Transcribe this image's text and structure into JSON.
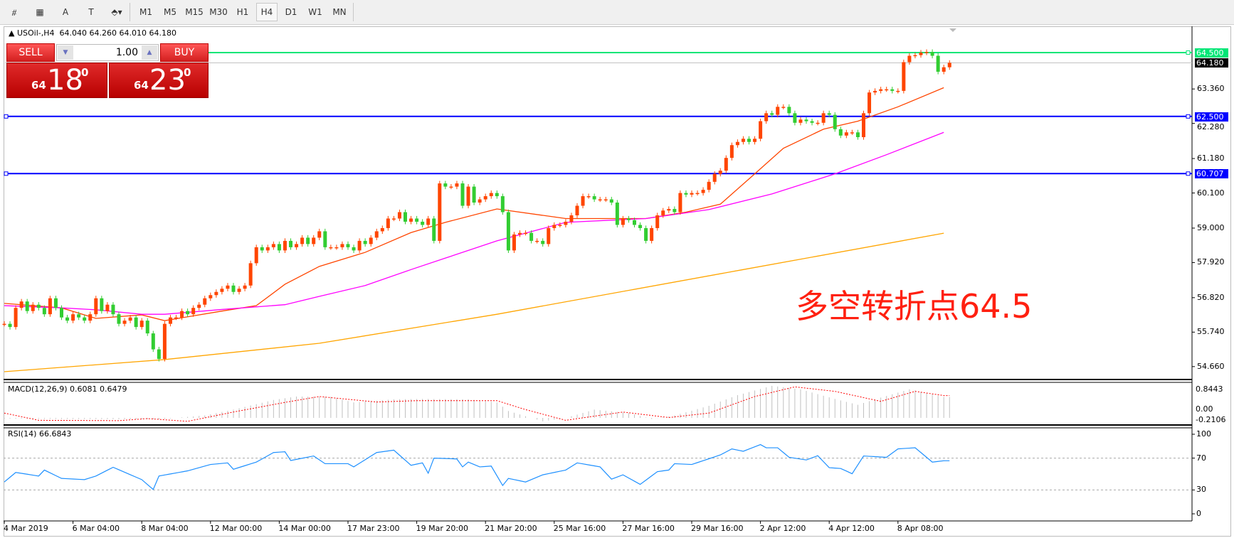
{
  "toolbar": {
    "tools": [
      {
        "name": "fibonacci-expansion-icon",
        "glyph": "⧣"
      },
      {
        "name": "fibonacci-fan-icon",
        "glyph": "▦"
      },
      {
        "name": "text-icon",
        "glyph": "A"
      },
      {
        "name": "text-label-icon",
        "glyph": "T"
      },
      {
        "name": "arrows-icon",
        "glyph": "⬘▾"
      }
    ],
    "timeframes": [
      "M1",
      "M5",
      "M15",
      "M30",
      "H1",
      "H4",
      "D1",
      "W1",
      "MN"
    ],
    "active_timeframe": "H4"
  },
  "header": {
    "symbol": "USOil-,H4",
    "ohlc": "64.040 64.260 64.010 64.180"
  },
  "trade_panel": {
    "sell_label": "SELL",
    "buy_label": "BUY",
    "volume": "1.00",
    "sell": {
      "prefix": "64",
      "big": "18",
      "sup": "0"
    },
    "buy": {
      "prefix": "64",
      "big": "23",
      "sup": "0"
    }
  },
  "annotation": "多空转折点64.5",
  "colors": {
    "bull": "#ff4500",
    "bear": "#32cd32",
    "ma_fast": "#ff4500",
    "ma_mid": "#ff00ff",
    "ma_slow": "#ffa500",
    "level_green": "#00e676",
    "level_blue": "#0000ff",
    "rsi": "#1e90ff",
    "macd_signal": "#ff0000",
    "macd_hist": "#c0c0c0"
  },
  "chart_data": {
    "type": "candlestick",
    "price_axis_ticks": [
      "63.360",
      "62.280",
      "61.180",
      "60.100",
      "59.000",
      "57.920",
      "56.820",
      "55.740",
      "54.660"
    ],
    "price_ylim": [
      54.35,
      64.95
    ],
    "time_labels": [
      {
        "bar": 0,
        "label": "4 Mar 2019"
      },
      {
        "bar": 12,
        "label": "6 Mar 04:00"
      },
      {
        "bar": 24,
        "label": "8 Mar 04:00"
      },
      {
        "bar": 36,
        "label": "12 Mar 00:00"
      },
      {
        "bar": 48,
        "label": "14 Mar 00:00"
      },
      {
        "bar": 60,
        "label": "17 Mar 23:00"
      },
      {
        "bar": 72,
        "label": "19 Mar 20:00"
      },
      {
        "bar": 84,
        "label": "21 Mar 20:00"
      },
      {
        "bar": 96,
        "label": "25 Mar 16:00"
      },
      {
        "bar": 108,
        "label": "27 Mar 16:00"
      },
      {
        "bar": 120,
        "label": "29 Mar 16:00"
      },
      {
        "bar": 132,
        "label": "2 Apr 12:00"
      },
      {
        "bar": 144,
        "label": "4 Apr 12:00"
      },
      {
        "bar": 156,
        "label": "8 Apr 08:00"
      }
    ],
    "closes": [
      56.0,
      55.9,
      56.5,
      56.7,
      56.4,
      56.6,
      56.5,
      56.3,
      56.8,
      56.5,
      56.2,
      56.1,
      56.3,
      56.2,
      56.1,
      56.3,
      56.8,
      56.4,
      56.6,
      56.3,
      56.0,
      56.1,
      56.2,
      55.9,
      56.1,
      55.7,
      55.2,
      54.9,
      56.0,
      56.2,
      56.2,
      56.4,
      56.3,
      56.5,
      56.6,
      56.8,
      56.9,
      57.0,
      57.1,
      57.2,
      57.0,
      57.1,
      57.2,
      57.9,
      58.4,
      58.3,
      58.4,
      58.5,
      58.3,
      58.6,
      58.4,
      58.5,
      58.7,
      58.5,
      58.7,
      58.9,
      58.4,
      58.4,
      58.4,
      58.5,
      58.4,
      58.3,
      58.6,
      58.5,
      58.7,
      58.9,
      59.0,
      59.3,
      59.3,
      59.5,
      59.2,
      59.3,
      59.2,
      59.1,
      59.3,
      58.6,
      60.4,
      60.3,
      60.3,
      60.4,
      59.7,
      60.3,
      59.8,
      59.9,
      60.0,
      60.1,
      60.0,
      59.5,
      58.3,
      58.8,
      58.85,
      58.85,
      58.6,
      58.6,
      58.5,
      59.0,
      59.1,
      59.1,
      59.2,
      59.4,
      59.7,
      60.0,
      60.0,
      59.9,
      59.9,
      59.9,
      59.8,
      59.1,
      59.3,
      59.25,
      59.1,
      59.0,
      58.6,
      59.0,
      59.4,
      59.55,
      59.6,
      59.5,
      60.1,
      60.05,
      60.1,
      60.1,
      60.2,
      60.45,
      60.7,
      60.8,
      61.2,
      61.6,
      61.7,
      61.8,
      61.7,
      61.8,
      62.35,
      62.6,
      62.55,
      62.8,
      62.8,
      62.6,
      62.3,
      62.4,
      62.35,
      62.3,
      62.3,
      62.6,
      62.55,
      62.1,
      61.9,
      62.0,
      62.0,
      61.85,
      62.6,
      63.25,
      63.3,
      63.35,
      63.35,
      63.3,
      63.3,
      64.2,
      64.4,
      64.42,
      64.5,
      64.52,
      64.4,
      63.9,
      64.04,
      64.18
    ],
    "moving_averages": [
      {
        "color_key": "ma_fast",
        "points": [
          [
            0,
            56.64
          ],
          [
            10,
            56.5
          ],
          [
            16,
            56.17
          ],
          [
            24,
            56.28
          ],
          [
            28,
            56.1
          ],
          [
            38,
            56.4
          ],
          [
            44,
            56.57
          ],
          [
            49,
            57.24
          ],
          [
            55,
            57.8
          ],
          [
            63,
            58.24
          ],
          [
            71,
            58.86
          ],
          [
            77,
            59.18
          ],
          [
            86,
            59.6
          ],
          [
            98,
            59.3
          ],
          [
            112,
            59.3
          ],
          [
            119,
            59.5
          ],
          [
            125,
            59.75
          ],
          [
            131,
            60.7
          ],
          [
            136,
            61.5
          ],
          [
            143,
            62.1
          ],
          [
            149,
            62.35
          ],
          [
            156,
            62.8
          ],
          [
            164,
            63.4
          ]
        ]
      },
      {
        "color_key": "ma_mid",
        "points": [
          [
            0,
            56.57
          ],
          [
            10,
            56.5
          ],
          [
            16,
            56.44
          ],
          [
            24,
            56.3
          ],
          [
            28,
            56.3
          ],
          [
            38,
            56.45
          ],
          [
            49,
            56.6
          ],
          [
            55,
            56.86
          ],
          [
            63,
            57.2
          ],
          [
            71,
            57.7
          ],
          [
            77,
            58.06
          ],
          [
            86,
            58.6
          ],
          [
            98,
            59.18
          ],
          [
            112,
            59.3
          ],
          [
            123,
            59.58
          ],
          [
            134,
            60.07
          ],
          [
            145,
            60.7
          ],
          [
            154,
            61.3
          ],
          [
            164,
            62.0
          ]
        ]
      },
      {
        "color_key": "ma_slow",
        "points": [
          [
            0,
            54.5
          ],
          [
            28,
            54.88
          ],
          [
            55,
            55.39
          ],
          [
            86,
            56.3
          ],
          [
            129,
            57.7
          ],
          [
            164,
            58.84
          ]
        ]
      }
    ],
    "levels": [
      {
        "price": 64.5,
        "label": "64.500",
        "color_key": "level_green"
      },
      {
        "price": 62.5,
        "label": "62.500",
        "color_key": "level_blue"
      },
      {
        "price": 60.707,
        "label": "60.707",
        "color_key": "level_blue"
      }
    ],
    "bid_line": {
      "price": 64.18,
      "label": "64.180"
    },
    "macd": {
      "label": "MACD(12,26,9) 0.6081 0.6479",
      "axis_ticks": [
        "0.8443",
        "0.00",
        "-0.2106"
      ],
      "ylim": [
        -0.2106,
        0.8443
      ],
      "main_points": [
        [
          0,
          -0.02
        ],
        [
          27,
          -0.04
        ],
        [
          35,
          0.07
        ],
        [
          40,
          0.24
        ],
        [
          47,
          0.52
        ],
        [
          51,
          0.62
        ],
        [
          57,
          0.61
        ],
        [
          61,
          0.45
        ],
        [
          68,
          0.54
        ],
        [
          73,
          0.55
        ],
        [
          81,
          0.54
        ],
        [
          86,
          0.45
        ],
        [
          88,
          0.2
        ],
        [
          94,
          -0.1
        ],
        [
          98,
          0
        ],
        [
          103,
          0.24
        ],
        [
          109,
          0.14
        ],
        [
          113,
          -0.03
        ],
        [
          117,
          0.07
        ],
        [
          123,
          0.35
        ],
        [
          128,
          0.66
        ],
        [
          134,
          0.93
        ],
        [
          139,
          0.83
        ],
        [
          145,
          0.55
        ],
        [
          149,
          0.38
        ],
        [
          153,
          0.59
        ],
        [
          158,
          0.83
        ],
        [
          164,
          0.6081
        ]
      ],
      "signal_points": [
        [
          0,
          0.14
        ],
        [
          6,
          -0.07
        ],
        [
          20,
          -0.08
        ],
        [
          25,
          -0.02
        ],
        [
          32,
          -0.1
        ],
        [
          40,
          0.17
        ],
        [
          49,
          0.45
        ],
        [
          55,
          0.62
        ],
        [
          65,
          0.46
        ],
        [
          72,
          0.5
        ],
        [
          86,
          0.5
        ],
        [
          91,
          0.24
        ],
        [
          98,
          -0.07
        ],
        [
          108,
          0.17
        ],
        [
          116,
          0.01
        ],
        [
          123,
          0.14
        ],
        [
          131,
          0.62
        ],
        [
          138,
          0.9
        ],
        [
          145,
          0.77
        ],
        [
          153,
          0.48
        ],
        [
          159,
          0.77
        ],
        [
          164,
          0.6479
        ]
      ]
    },
    "rsi": {
      "label": "RSI(14) 66.6843",
      "axis_ticks": [
        "100",
        "70",
        "30",
        "0"
      ],
      "levels": [
        70,
        30
      ],
      "points": [
        [
          0,
          40
        ],
        [
          2,
          52
        ],
        [
          6,
          47.5
        ],
        [
          7,
          55
        ],
        [
          10,
          44.5
        ],
        [
          14,
          43
        ],
        [
          16,
          47.5
        ],
        [
          19,
          58.5
        ],
        [
          24,
          43
        ],
        [
          26,
          30.6
        ],
        [
          27,
          47.5
        ],
        [
          32,
          54
        ],
        [
          36,
          62
        ],
        [
          39,
          64
        ],
        [
          40,
          56
        ],
        [
          44,
          65
        ],
        [
          47,
          77
        ],
        [
          49,
          78
        ],
        [
          50,
          67
        ],
        [
          54,
          72.7
        ],
        [
          56,
          63
        ],
        [
          60,
          63
        ],
        [
          61,
          59
        ],
        [
          65,
          77
        ],
        [
          68,
          80
        ],
        [
          71,
          61
        ],
        [
          73,
          64
        ],
        [
          74,
          51
        ],
        [
          75,
          70
        ],
        [
          79,
          69
        ],
        [
          80,
          59
        ],
        [
          81,
          65
        ],
        [
          83,
          59
        ],
        [
          85,
          60
        ],
        [
          87,
          35.6
        ],
        [
          88,
          44.5
        ],
        [
          91,
          40
        ],
        [
          94,
          49
        ],
        [
          98,
          55
        ],
        [
          100,
          64
        ],
        [
          104,
          59
        ],
        [
          106,
          43.6
        ],
        [
          108,
          49
        ],
        [
          111,
          37
        ],
        [
          114,
          53
        ],
        [
          116,
          55
        ],
        [
          117,
          63
        ],
        [
          120,
          62
        ],
        [
          125,
          74
        ],
        [
          127,
          81.6
        ],
        [
          129,
          78.6
        ],
        [
          132,
          87
        ],
        [
          133,
          83
        ],
        [
          135,
          83
        ],
        [
          137,
          71
        ],
        [
          140,
          67.7
        ],
        [
          142,
          73
        ],
        [
          144,
          58
        ],
        [
          146,
          57
        ],
        [
          148,
          50.4
        ],
        [
          150,
          72.7
        ],
        [
          154,
          71
        ],
        [
          156,
          81.6
        ],
        [
          159,
          83
        ],
        [
          162,
          65
        ],
        [
          164,
          66.6843
        ]
      ]
    }
  }
}
